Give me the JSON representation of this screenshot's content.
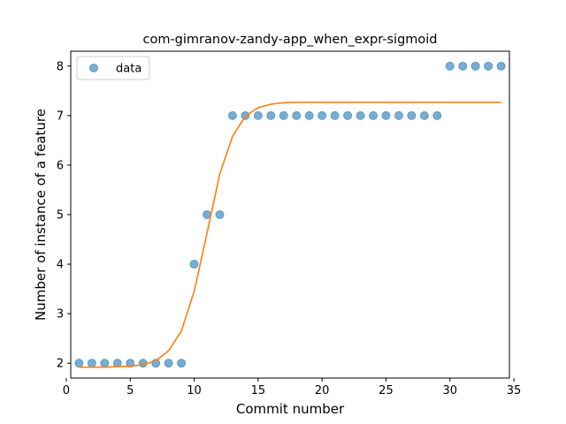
{
  "chart_data": {
    "type": "scatter",
    "title": "com-gimranov-zandy-app_when_expr-sigmoid",
    "xlabel": "Commit number",
    "ylabel": "Number of instance of a feature",
    "xlim": [
      0.35,
      34.65
    ],
    "ylim": [
      1.7,
      8.3
    ],
    "xticks": [
      0,
      5,
      10,
      15,
      20,
      25,
      30,
      35
    ],
    "yticks": [
      2,
      3,
      4,
      5,
      6,
      7,
      8
    ],
    "grid": false,
    "legend_position": "top-left",
    "series": [
      {
        "name": "data",
        "kind": "scatter",
        "color": "#1f77b4",
        "x": [
          1,
          2,
          3,
          4,
          5,
          6,
          7,
          8,
          9,
          10,
          11,
          12,
          13,
          14,
          15,
          16,
          17,
          18,
          19,
          20,
          21,
          22,
          23,
          24,
          25,
          26,
          27,
          28,
          29,
          30,
          31,
          32,
          33,
          34
        ],
        "y": [
          2,
          2,
          2,
          2,
          2,
          2,
          2,
          2,
          2,
          4,
          5,
          5,
          7,
          7,
          7,
          7,
          7,
          7,
          7,
          7,
          7,
          7,
          7,
          7,
          7,
          7,
          7,
          7,
          7,
          8,
          8,
          8,
          8,
          8
        ]
      },
      {
        "kind": "line",
        "color": "#ff7f0e",
        "x": [
          1,
          2,
          3,
          4,
          5,
          6,
          7,
          8,
          9,
          10,
          11,
          12,
          13,
          14,
          15,
          16,
          17,
          18,
          19,
          20,
          21,
          22,
          23,
          24,
          25,
          26,
          27,
          28,
          29,
          30,
          31,
          32,
          33,
          34
        ],
        "y": [
          1.92,
          1.92,
          1.92,
          1.93,
          1.94,
          1.97,
          2.05,
          2.25,
          2.65,
          3.45,
          4.62,
          5.82,
          6.58,
          6.99,
          7.16,
          7.23,
          7.26,
          7.27,
          7.27,
          7.27,
          7.27,
          7.27,
          7.27,
          7.27,
          7.27,
          7.27,
          7.27,
          7.27,
          7.27,
          7.27,
          7.27,
          7.27,
          7.27,
          7.27
        ]
      }
    ]
  }
}
